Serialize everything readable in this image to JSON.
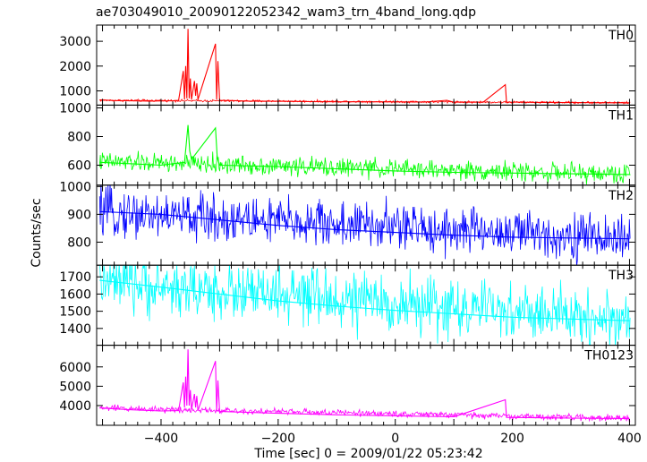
{
  "chart_data": {
    "type": "line",
    "title": "ae703049010_20090122052342_wam3_trn_4band_long.qdp",
    "xlabel": "Time [sec] 0 = 2009/01/22 05:23:42",
    "ylabel": "Counts/sec",
    "xlim": [
      -510,
      410
    ],
    "xticks": [
      -400,
      -200,
      0,
      200,
      400
    ],
    "grid": false,
    "panels": [
      {
        "name": "TH0",
        "color": "#ff0000",
        "ylim": [
          480,
          3600
        ],
        "yticks": [
          1000,
          2000,
          3000
        ],
        "baseline": {
          "start": 620,
          "end": 520
        },
        "noise": 45,
        "points": [
          [
            -505,
            640
          ],
          [
            -480,
            610
          ],
          [
            -450,
            600
          ],
          [
            -420,
            590
          ],
          [
            -400,
            595
          ],
          [
            -380,
            600
          ],
          [
            -370,
            620
          ],
          [
            -362,
            1800
          ],
          [
            -360,
            650
          ],
          [
            -358,
            2000
          ],
          [
            -356,
            700
          ],
          [
            -354,
            3500
          ],
          [
            -352,
            700
          ],
          [
            -350,
            1500
          ],
          [
            -348,
            650
          ],
          [
            -343,
            1400
          ],
          [
            -341,
            800
          ],
          [
            -339,
            1300
          ],
          [
            -337,
            650
          ],
          [
            -307,
            2900
          ],
          [
            -305,
            650
          ],
          [
            -303,
            2200
          ],
          [
            -300,
            620
          ],
          [
            -250,
            590
          ],
          [
            -200,
            580
          ],
          [
            -150,
            570
          ],
          [
            -100,
            560
          ],
          [
            -50,
            560
          ],
          [
            0,
            555
          ],
          [
            50,
            550
          ],
          [
            88,
            620
          ],
          [
            100,
            545
          ],
          [
            150,
            540
          ],
          [
            188,
            1250
          ],
          [
            190,
            550
          ],
          [
            250,
            535
          ],
          [
            300,
            530
          ],
          [
            350,
            525
          ],
          [
            400,
            520
          ]
        ]
      },
      {
        "name": "TH1",
        "color": "#00ff00",
        "ylim": [
          470,
          1010
        ],
        "yticks": [
          600,
          800,
          1000
        ],
        "baseline": {
          "start": 625,
          "end": 535
        },
        "noise": 65,
        "points": [
          [
            -505,
            620
          ],
          [
            -450,
            610
          ],
          [
            -400,
            600
          ],
          [
            -360,
            620
          ],
          [
            -354,
            880
          ],
          [
            -351,
            700
          ],
          [
            -348,
            640
          ],
          [
            -307,
            860
          ],
          [
            -304,
            650
          ],
          [
            -300,
            600
          ],
          [
            -200,
            590
          ],
          [
            -100,
            575
          ],
          [
            0,
            560
          ],
          [
            100,
            550
          ],
          [
            200,
            545
          ],
          [
            300,
            540
          ],
          [
            400,
            535
          ]
        ]
      },
      {
        "name": "TH2",
        "color": "#0000ff",
        "ylim": [
          722,
          1000
        ],
        "yticks": [
          800,
          900,
          1000
        ],
        "baseline": {
          "start": 908,
          "end": 812
        },
        "noise": 85,
        "points": [
          [
            -505,
            910
          ],
          [
            -400,
            900
          ],
          [
            -300,
            880
          ],
          [
            -200,
            860
          ],
          [
            -100,
            845
          ],
          [
            0,
            835
          ],
          [
            100,
            825
          ],
          [
            200,
            818
          ],
          [
            300,
            815
          ],
          [
            400,
            812
          ]
        ]
      },
      {
        "name": "TH3",
        "color": "#00ffff",
        "ylim": [
          1310,
          1760
        ],
        "yticks": [
          1400,
          1500,
          1600,
          1700
        ],
        "baseline": {
          "start": 1665,
          "end": 1445
        },
        "noise": 165,
        "points": [
          [
            -505,
            1680
          ],
          [
            -400,
            1640
          ],
          [
            -300,
            1600
          ],
          [
            -200,
            1560
          ],
          [
            -100,
            1530
          ],
          [
            0,
            1505
          ],
          [
            100,
            1485
          ],
          [
            200,
            1465
          ],
          [
            300,
            1455
          ],
          [
            400,
            1445
          ]
        ]
      },
      {
        "name": "TH0123",
        "color": "#ff00ff",
        "ylim": [
          3050,
          7050
        ],
        "yticks": [
          4000,
          5000,
          6000
        ],
        "baseline": {
          "start": 3880,
          "end": 3330
        },
        "noise": 160,
        "points": [
          [
            -505,
            3880
          ],
          [
            -450,
            3780
          ],
          [
            -400,
            3720
          ],
          [
            -370,
            3740
          ],
          [
            -362,
            5200
          ],
          [
            -360,
            3900
          ],
          [
            -358,
            5500
          ],
          [
            -356,
            4000
          ],
          [
            -354,
            6900
          ],
          [
            -352,
            4000
          ],
          [
            -350,
            4800
          ],
          [
            -348,
            3800
          ],
          [
            -343,
            4600
          ],
          [
            -341,
            3900
          ],
          [
            -339,
            4500
          ],
          [
            -337,
            3750
          ],
          [
            -307,
            6300
          ],
          [
            -305,
            3750
          ],
          [
            -303,
            5300
          ],
          [
            -300,
            3700
          ],
          [
            -200,
            3600
          ],
          [
            -100,
            3520
          ],
          [
            0,
            3470
          ],
          [
            100,
            3420
          ],
          [
            188,
            4300
          ],
          [
            190,
            3390
          ],
          [
            300,
            3350
          ],
          [
            400,
            3330
          ]
        ]
      }
    ]
  }
}
